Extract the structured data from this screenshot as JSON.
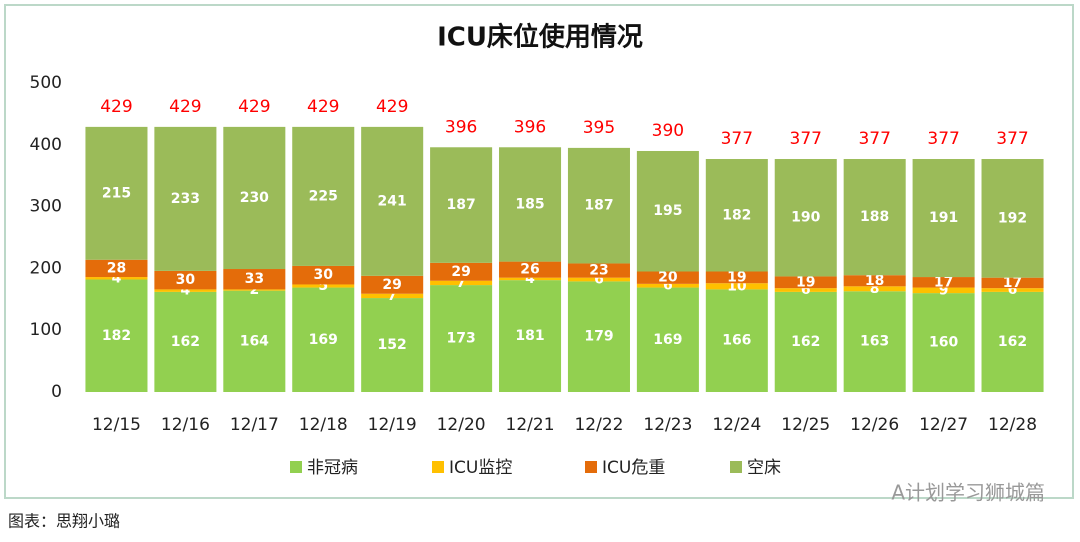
{
  "chart_data": {
    "type": "stacked_bar",
    "title": "ICU床位使用情况",
    "categories": [
      "12/15",
      "12/16",
      "12/17",
      "12/18",
      "12/19",
      "12/20",
      "12/21",
      "12/22",
      "12/23",
      "12/24",
      "12/25",
      "12/26",
      "12/27",
      "12/28"
    ],
    "series": [
      {
        "name": "非冠病",
        "color": "#92d050",
        "values": [
          182,
          162,
          164,
          169,
          152,
          173,
          181,
          179,
          169,
          166,
          162,
          163,
          160,
          162
        ]
      },
      {
        "name": "ICU监控",
        "color": "#ffc000",
        "values": [
          4,
          4,
          2,
          5,
          7,
          7,
          4,
          6,
          6,
          10,
          6,
          8,
          9,
          6
        ]
      },
      {
        "name": "ICU危重",
        "color": "#e46c0a",
        "values": [
          28,
          30,
          33,
          30,
          29,
          29,
          26,
          23,
          20,
          19,
          19,
          18,
          17,
          17
        ]
      },
      {
        "name": "空床",
        "color": "#9bbb59",
        "values": [
          215,
          233,
          230,
          225,
          241,
          187,
          185,
          187,
          195,
          182,
          190,
          188,
          191,
          192
        ]
      }
    ],
    "totals": [
      429,
      429,
      429,
      429,
      429,
      396,
      396,
      395,
      390,
      377,
      377,
      377,
      377,
      377
    ],
    "totals_color": "#ff0000",
    "ylim": [
      0,
      500
    ],
    "yticks": [
      0,
      100,
      200,
      300,
      400,
      500
    ],
    "grid": false,
    "legend": "bottom"
  },
  "caption": "图表：思翔小璐",
  "watermark": "A计划学习狮城篇"
}
